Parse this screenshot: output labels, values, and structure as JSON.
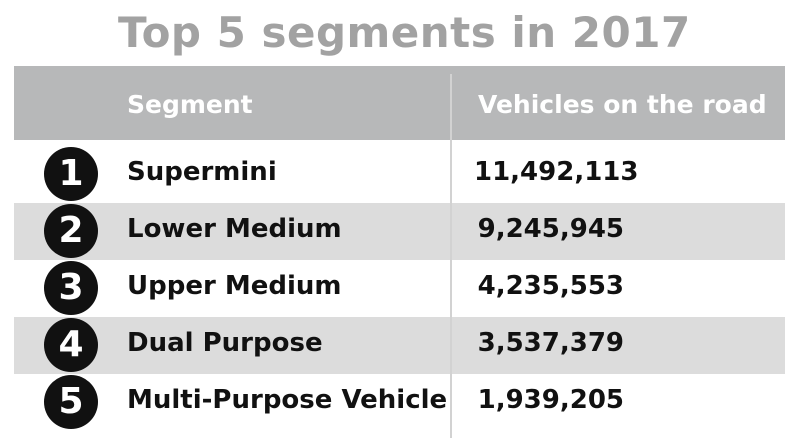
{
  "chart_data": {
    "type": "table",
    "title": "Top 5 segments in 2017",
    "columns": [
      "Segment",
      "Vehicles on the road"
    ],
    "rows": [
      {
        "rank": "1",
        "segment": "Supermini",
        "vehicles": "11,492,113",
        "value": 11492113
      },
      {
        "rank": "2",
        "segment": "Lower Medium",
        "vehicles": "9,245,945",
        "value": 9245945
      },
      {
        "rank": "3",
        "segment": "Upper Medium",
        "vehicles": "4,235,553",
        "value": 4235553
      },
      {
        "rank": "4",
        "segment": "Dual Purpose",
        "vehicles": "3,537,379",
        "value": 3537379
      },
      {
        "rank": "5",
        "segment": "Multi-Purpose Vehicle",
        "vehicles": "1,939,205",
        "value": 1939205
      }
    ]
  },
  "colors": {
    "title": "#a2a2a2",
    "header_bg": "#b7b8b9",
    "row_shade": "#dcdcdc",
    "badge": "#111111"
  }
}
